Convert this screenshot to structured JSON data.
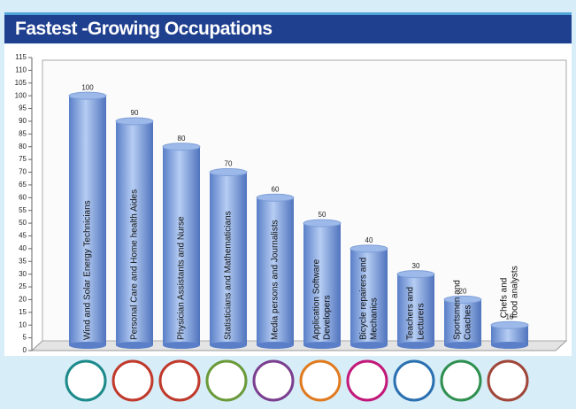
{
  "chart_data": {
    "type": "bar",
    "title": "Fastest -Growing Occupations",
    "categories": [
      [
        "Wind and Solar Energy Technicians"
      ],
      [
        "Personal Care and Home health Aides"
      ],
      [
        "Physician Assistants and Nurse"
      ],
      [
        "Statisticians and Mathematicians"
      ],
      [
        "Media persons and Journalists"
      ],
      [
        "Application Software",
        "Developers"
      ],
      [
        "Bicycle repairers and",
        "Mechanics"
      ],
      [
        "Teachers and",
        "Lecturers"
      ],
      [
        "Sportsmen and",
        "Coaches"
      ],
      [
        "Chefs and",
        "food analysts"
      ]
    ],
    "values": [
      100,
      90,
      80,
      70,
      60,
      50,
      40,
      30,
      20,
      10
    ],
    "color": "#6e94d9",
    "ylim": [
      0,
      115
    ],
    "yticks": [
      0,
      5,
      10,
      15,
      20,
      25,
      30,
      35,
      40,
      45,
      50,
      55,
      60,
      65,
      70,
      75,
      80,
      85,
      90,
      95,
      100,
      105,
      110,
      115
    ]
  }
}
